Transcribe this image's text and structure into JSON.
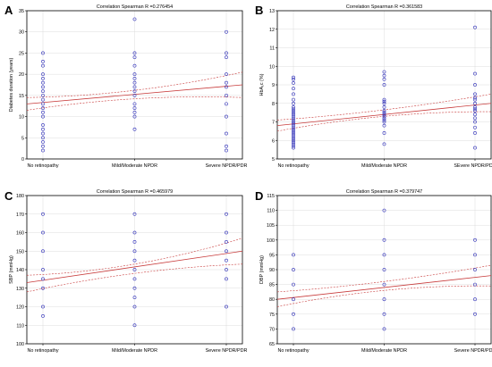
{
  "chart_data": [
    {
      "panel": "A",
      "type": "scatter",
      "title": "Correlation Spearman R =0.276454",
      "ylabel": "Diabetes duration (years)",
      "xlabel": "",
      "categories": [
        "No retinopathy",
        "Mild/Moderate NPDR",
        "Severe NPDR/PDR"
      ],
      "ylim": [
        0,
        35
      ],
      "yticks": [
        0,
        5,
        10,
        15,
        20,
        25,
        30,
        35
      ],
      "grid": true,
      "points": [
        {
          "group": 0,
          "values": [
            2,
            3,
            4,
            5,
            6,
            7,
            8,
            10,
            11,
            12,
            13,
            14,
            15,
            16,
            17,
            18,
            19,
            20,
            22,
            23,
            25
          ]
        },
        {
          "group": 1,
          "values": [
            7,
            10,
            11,
            12,
            13,
            15,
            16,
            17,
            18,
            19,
            20,
            22,
            24,
            25,
            33
          ]
        },
        {
          "group": 2,
          "values": [
            2,
            3,
            6,
            10,
            13,
            15,
            17,
            18,
            20,
            24,
            25,
            30
          ]
        }
      ],
      "fit": {
        "start": 13,
        "end": 17.5
      },
      "ci_lower": {
        "start": 11.5,
        "mid": 14.2,
        "end": 14.5
      },
      "ci_upper": {
        "start": 14.5,
        "mid": 16.2,
        "end": 20.5
      }
    },
    {
      "panel": "B",
      "type": "scatter",
      "title": "Correlation Spearman R =0.361583",
      "ylabel": "HbA₁c (%)",
      "xlabel": "",
      "categories": [
        "No retinopathy",
        "Mild/Moderate NPDR",
        "SEvere NPDR/PDR"
      ],
      "ylim": [
        5,
        13
      ],
      "yticks": [
        5,
        6,
        7,
        8,
        9,
        10,
        11,
        12,
        13
      ],
      "yticklabels": [
        "5",
        "6",
        "7",
        "8",
        "9",
        "10",
        "11",
        "12",
        "13"
      ],
      "grid": true,
      "points": [
        {
          "group": 0,
          "values": [
            5.6,
            5.7,
            5.8,
            5.9,
            6.0,
            6.1,
            6.2,
            6.3,
            6.4,
            6.5,
            6.6,
            6.7,
            6.8,
            6.9,
            7.0,
            7.1,
            7.2,
            7.3,
            7.4,
            7.5,
            7.6,
            7.7,
            7.8,
            8.0,
            8.2,
            8.5,
            8.8,
            9.1,
            9.3,
            9.4
          ]
        },
        {
          "group": 1,
          "values": [
            5.8,
            6.4,
            6.8,
            7.0,
            7.1,
            7.2,
            7.3,
            7.4,
            7.5,
            7.6,
            7.8,
            8.0,
            8.1,
            8.2,
            9.0,
            9.3,
            9.5,
            9.7
          ]
        },
        {
          "group": 2,
          "values": [
            5.6,
            6.4,
            6.7,
            7.0,
            7.2,
            7.4,
            7.6,
            7.7,
            7.8,
            8.0,
            8.2,
            8.3,
            8.5,
            9.0,
            9.6,
            12.1
          ]
        }
      ],
      "fit": {
        "start": 6.8,
        "end": 8.0
      },
      "ci_lower": {
        "start": 6.5,
        "mid": 7.3,
        "end": 7.55
      },
      "ci_upper": {
        "start": 7.1,
        "mid": 7.65,
        "end": 8.5
      }
    },
    {
      "panel": "C",
      "type": "scatter",
      "title": "Correlation Spearman R =0.465979",
      "ylabel": "SBP (mmHg)",
      "xlabel": "",
      "categories": [
        "No retinopathy",
        "Mild/Moderate NPDR",
        "Severe NPDR/PDR"
      ],
      "ylim": [
        100,
        180
      ],
      "yticks": [
        100,
        110,
        120,
        130,
        140,
        150,
        160,
        170,
        180
      ],
      "grid": true,
      "points": [
        {
          "group": 0,
          "values": [
            115,
            120,
            130,
            135,
            140,
            150,
            160,
            170
          ]
        },
        {
          "group": 1,
          "values": [
            110,
            120,
            125,
            130,
            135,
            140,
            145,
            150,
            155,
            160,
            170
          ]
        },
        {
          "group": 2,
          "values": [
            120,
            135,
            140,
            145,
            150,
            155,
            160,
            170
          ]
        }
      ],
      "fit": {
        "start": 133,
        "end": 150
      },
      "ci_lower": {
        "start": 128,
        "mid": 138,
        "end": 143
      },
      "ci_upper": {
        "start": 137,
        "mid": 143,
        "end": 157
      }
    },
    {
      "panel": "D",
      "type": "scatter",
      "title": "Correlation Spearman R =0.379747",
      "ylabel": "DBP (mmHg)",
      "xlabel": "",
      "categories": [
        "No retinopathy",
        "Mild/Moderate NPDR",
        "Severe NPDR/PDR"
      ],
      "ylim": [
        65,
        115
      ],
      "yticks": [
        65,
        70,
        75,
        80,
        85,
        90,
        95,
        100,
        105,
        110,
        115
      ],
      "grid": true,
      "points": [
        {
          "group": 0,
          "values": [
            70,
            75,
            80,
            85,
            90,
            95
          ]
        },
        {
          "group": 1,
          "values": [
            70,
            75,
            80,
            85,
            90,
            95,
            100,
            110
          ]
        },
        {
          "group": 2,
          "values": [
            75,
            80,
            85,
            90,
            95,
            100
          ]
        }
      ],
      "fit": {
        "start": 80,
        "end": 88
      },
      "ci_lower": {
        "start": 77.5,
        "mid": 83,
        "end": 84.5
      },
      "ci_upper": {
        "start": 82.5,
        "mid": 86,
        "end": 91.5
      }
    }
  ],
  "colors": {
    "points": "#2b2bb8",
    "fit_line": "#c83c3c",
    "ci_line": "#c83c3c",
    "grid": "#dcdcdc",
    "frame": "#000000"
  }
}
